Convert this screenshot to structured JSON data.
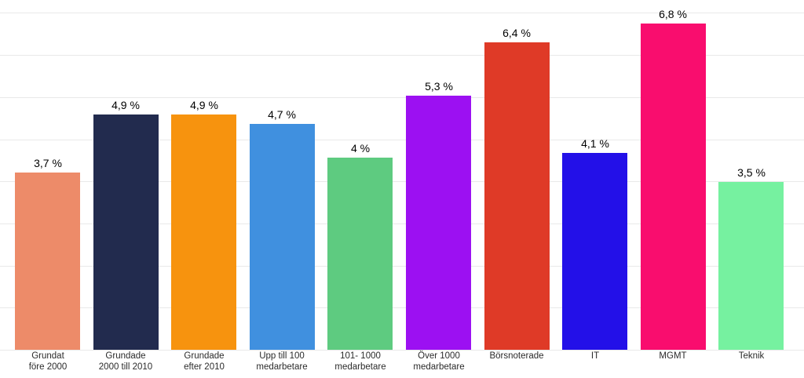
{
  "chart_data": {
    "type": "bar",
    "title": "",
    "xlabel": "",
    "ylabel": "",
    "ylim": [
      0,
      7
    ],
    "grid": true,
    "gridline_count": 9,
    "legend": "none",
    "value_suffix": " %",
    "decimal_separator": ",",
    "categories": [
      "Grundat före 2000",
      "Grundade 2000 till 2010",
      "Grundade efter 2010",
      "Upp till 100 medarbetare",
      "101- 1000 medarbetare",
      "Över 1000 medarbetare",
      "Börsnoterade",
      "IT",
      "MGMT",
      "Teknik"
    ],
    "category_lines": [
      [
        "Grundat",
        "före 2000"
      ],
      [
        "Grundade",
        "2000 till 2010"
      ],
      [
        "Grundade",
        "efter 2010"
      ],
      [
        "Upp till 100",
        "medarbetare"
      ],
      [
        "101- 1000",
        "medarbetare"
      ],
      [
        "Över 1000",
        "medarbetare"
      ],
      [
        "Börsnoterade"
      ],
      [
        "IT"
      ],
      [
        "MGMT"
      ],
      [
        "Teknik"
      ]
    ],
    "values": [
      3.7,
      4.9,
      4.9,
      4.7,
      4.0,
      5.3,
      6.4,
      4.1,
      6.8,
      3.5
    ],
    "value_labels": [
      "3,7 %",
      "4,9 %",
      "4,9 %",
      "4,7 %",
      "4 %",
      "5,3 %",
      "6,4 %",
      "4,1 %",
      "6,8 %",
      "3,5 %"
    ],
    "bar_colors": [
      "#ED8B69",
      "#222B4E",
      "#F7930E",
      "#4090DF",
      "#5ECB80",
      "#9C10F2",
      "#DF3A27",
      "#2310E8",
      "#F90D6E",
      "#76F1A0"
    ],
    "gridline_color": "#E9E9E9",
    "background_color": "#FFFFFF",
    "value_label_color": "#000000",
    "category_label_color": "#2B2B2B"
  }
}
